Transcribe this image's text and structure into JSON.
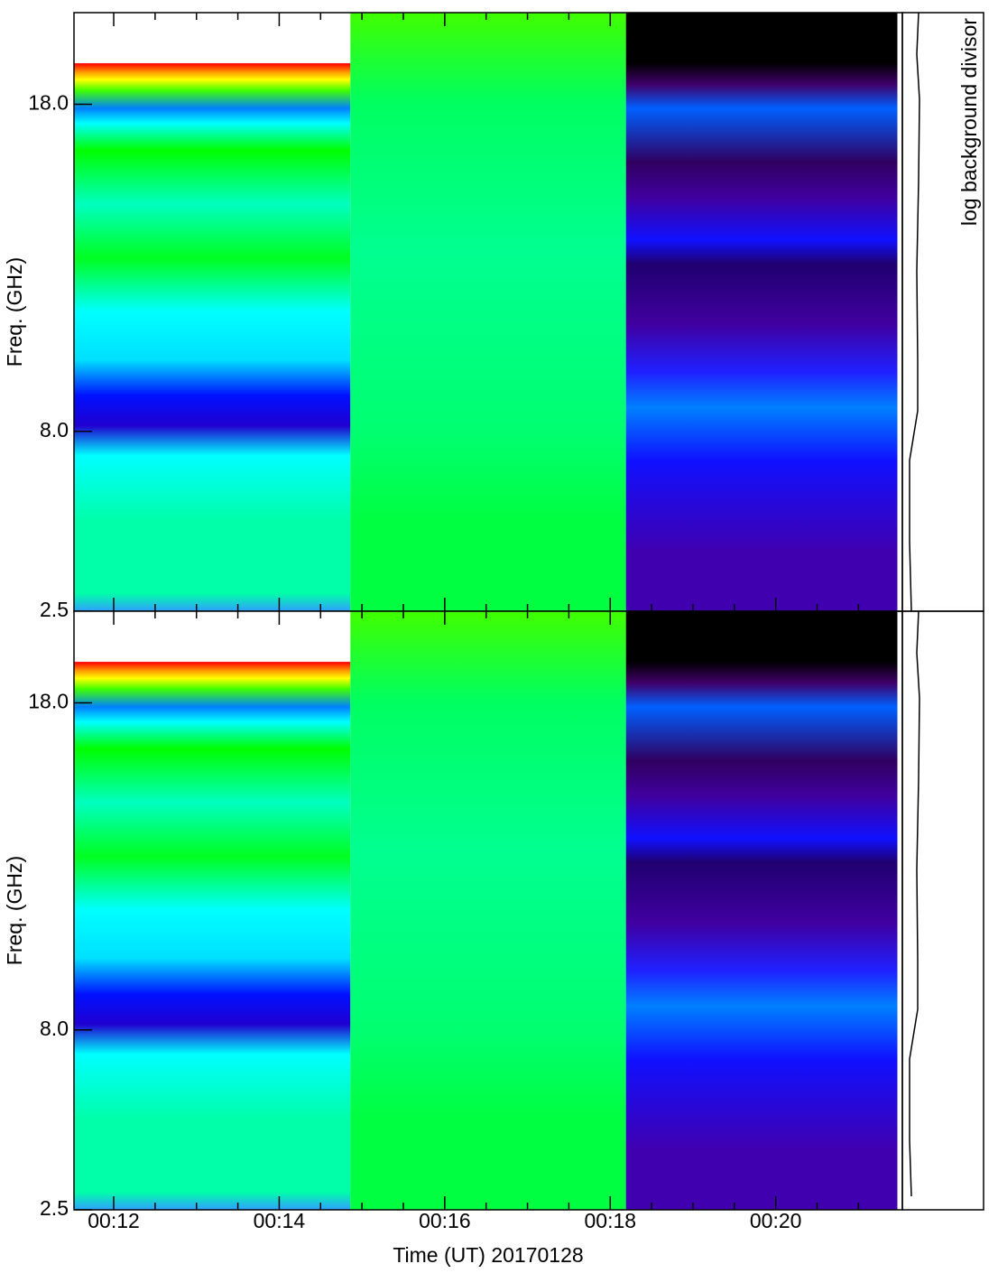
{
  "chart_data": [
    {
      "type": "spectrogram",
      "ylabel": "Freq. (GHz)",
      "side_label": "log background divisor",
      "xlim": [
        11.52,
        21.53
      ],
      "xticks": [
        12,
        14,
        16,
        18,
        20
      ],
      "xminorticks": [
        12.5,
        13,
        13.5,
        14.5,
        15,
        15.5,
        16.5,
        17,
        17.5,
        18.5,
        19,
        19.5,
        20.5,
        21
      ],
      "ylim": [
        2.5,
        20.8
      ],
      "yticks": [
        2.5,
        {
          "value": 8,
          "label": "8.0"
        },
        {
          "value": 18,
          "label": "18.0"
        }
      ],
      "blocks": [
        {
          "x": [
            11.52,
            14.86
          ],
          "stops": [
            [
              0,
              "#ffffff"
            ],
            [
              0.084,
              "#ffffff"
            ],
            [
              0.085,
              "#ff0000"
            ],
            [
              0.1,
              "#ffa000"
            ],
            [
              0.112,
              "#ffff00"
            ],
            [
              0.13,
              "#40ff00"
            ],
            [
              0.16,
              "#0080ff"
            ],
            [
              0.185,
              "#00ffff"
            ],
            [
              0.23,
              "#00ff00"
            ],
            [
              0.32,
              "#00ffc0"
            ],
            [
              0.41,
              "#00ff20"
            ],
            [
              0.5,
              "#00ffff"
            ],
            [
              0.58,
              "#00e0ff"
            ],
            [
              0.64,
              "#0010ff"
            ],
            [
              0.69,
              "#2000d0"
            ],
            [
              0.74,
              "#00ffff"
            ],
            [
              0.85,
              "#00ffa8"
            ],
            [
              0.97,
              "#00ffa8"
            ],
            [
              1,
              "#30a0ff"
            ]
          ]
        },
        {
          "x": [
            14.86,
            18.19
          ],
          "stops": [
            [
              0,
              "#40ff00"
            ],
            [
              0.15,
              "#00ff60"
            ],
            [
              0.4,
              "#00ff90"
            ],
            [
              0.7,
              "#00ff70"
            ],
            [
              0.85,
              "#00ff40"
            ],
            [
              1,
              "#00ff40"
            ]
          ]
        },
        {
          "x": [
            18.19,
            21.47
          ],
          "stops": [
            [
              0,
              "#000000"
            ],
            [
              0.084,
              "#000000"
            ],
            [
              0.12,
              "#40006a"
            ],
            [
              0.16,
              "#0060ff"
            ],
            [
              0.25,
              "#300060"
            ],
            [
              0.31,
              "#4000a0"
            ],
            [
              0.38,
              "#1010ff"
            ],
            [
              0.42,
              "#200070"
            ],
            [
              0.52,
              "#4000a0"
            ],
            [
              0.6,
              "#2020ff"
            ],
            [
              0.66,
              "#0080ff"
            ],
            [
              0.75,
              "#1010ff"
            ],
            [
              0.9,
              "#4000b0"
            ],
            [
              1,
              "#4000b0"
            ]
          ]
        }
      ]
    },
    {
      "type": "spectrogram",
      "ylabel": "Freq. (GHz)",
      "xlabel": "Time (UT) 20170128",
      "xlim": [
        11.52,
        21.53
      ],
      "xticks": [
        {
          "value": 12,
          "label": "00:12"
        },
        {
          "value": 14,
          "label": "00:14"
        },
        {
          "value": 16,
          "label": "00:16"
        },
        {
          "value": 18,
          "label": "00:18"
        },
        {
          "value": 20,
          "label": "00:20"
        }
      ],
      "xminorticks": [
        12.5,
        13,
        13.5,
        14.5,
        15,
        15.5,
        16.5,
        17,
        17.5,
        18.5,
        19,
        19.5,
        20.5,
        21
      ],
      "ylim": [
        2.5,
        20.8
      ],
      "yticks": [
        2.5,
        {
          "value": 8,
          "label": "8.0"
        },
        {
          "value": 18,
          "label": "18.0"
        }
      ],
      "blocks": [
        {
          "x": [
            11.52,
            14.86
          ],
          "stops": [
            [
              0,
              "#ffffff"
            ],
            [
              0.084,
              "#ffffff"
            ],
            [
              0.085,
              "#ff0000"
            ],
            [
              0.1,
              "#ffa000"
            ],
            [
              0.112,
              "#ffff00"
            ],
            [
              0.13,
              "#40ff00"
            ],
            [
              0.16,
              "#0080ff"
            ],
            [
              0.185,
              "#00ffff"
            ],
            [
              0.23,
              "#00ff00"
            ],
            [
              0.32,
              "#00ffc0"
            ],
            [
              0.41,
              "#00ff20"
            ],
            [
              0.5,
              "#00ffff"
            ],
            [
              0.58,
              "#00e0ff"
            ],
            [
              0.64,
              "#0010ff"
            ],
            [
              0.69,
              "#2000d0"
            ],
            [
              0.74,
              "#00ffff"
            ],
            [
              0.85,
              "#00ffa8"
            ],
            [
              0.97,
              "#00ffa8"
            ],
            [
              1,
              "#30a0ff"
            ]
          ]
        },
        {
          "x": [
            14.86,
            18.19
          ],
          "stops": [
            [
              0,
              "#40ff00"
            ],
            [
              0.15,
              "#00ff60"
            ],
            [
              0.4,
              "#00ff90"
            ],
            [
              0.7,
              "#00ff70"
            ],
            [
              0.85,
              "#00ff40"
            ],
            [
              1,
              "#00ff40"
            ]
          ]
        },
        {
          "x": [
            18.19,
            21.47
          ],
          "stops": [
            [
              0,
              "#000000"
            ],
            [
              0.084,
              "#000000"
            ],
            [
              0.12,
              "#40006a"
            ],
            [
              0.16,
              "#0060ff"
            ],
            [
              0.25,
              "#300060"
            ],
            [
              0.31,
              "#4000a0"
            ],
            [
              0.38,
              "#1010ff"
            ],
            [
              0.42,
              "#200070"
            ],
            [
              0.52,
              "#4000a0"
            ],
            [
              0.6,
              "#2020ff"
            ],
            [
              0.66,
              "#0080ff"
            ],
            [
              0.75,
              "#1010ff"
            ],
            [
              0.9,
              "#4000b0"
            ],
            [
              1,
              "#4000b0"
            ]
          ]
        }
      ]
    }
  ]
}
